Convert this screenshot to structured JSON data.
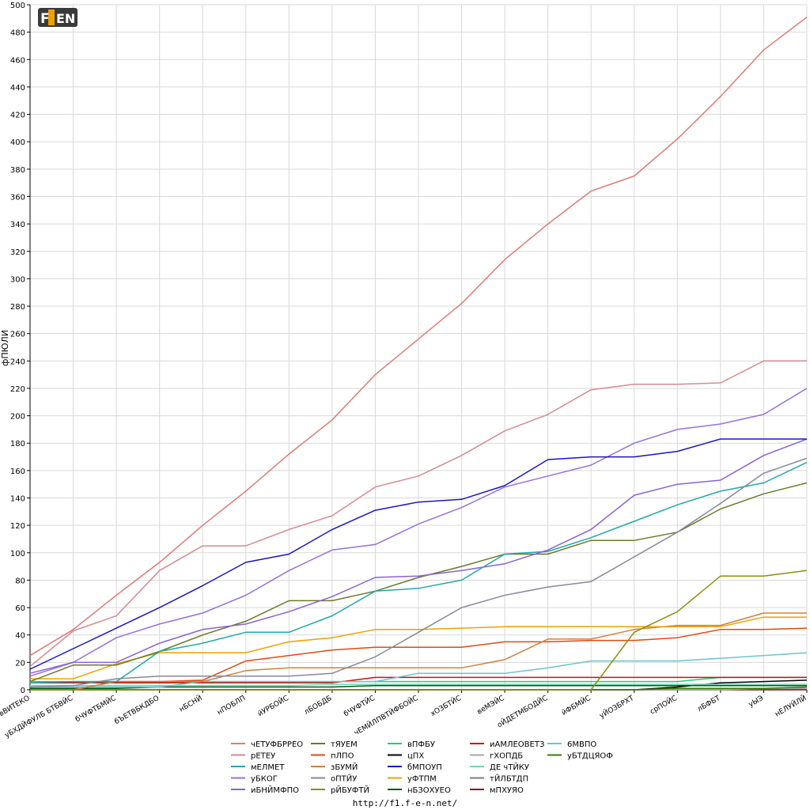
{
  "footer_url": "http://f1.f-e-n.net/",
  "logo_text": "F1EN",
  "chart_data": {
    "type": "line",
    "title": "",
    "xlabel": "",
    "ylabel": "фПЮЛИ",
    "ylim": [
      0,
      500
    ],
    "yticks": [
      0,
      20,
      40,
      60,
      80,
      100,
      120,
      140,
      160,
      180,
      200,
      220,
      240,
      260,
      280,
      300,
      320,
      340,
      360,
      380,
      400,
      420,
      440,
      460,
      480,
      500
    ],
    "grid": true,
    "legend_placement": "bottom",
    "categories": [
      "вВИТЕКО",
      "уБХДЙФУЛБ БТБВЙС",
      "бЧУФТБМЙС",
      "бЪЕТВБКДБО",
      "нБСНЙ",
      "нПОБЛП",
      "йУРБОЙС",
      "лБОБДБ",
      "бЧУФТЙС",
      "чЕМЙЛПВТЙФБОЙС",
      "хОЗБТЙС",
      "веМЭЙС",
      "оЙДЕТМБОДЙС",
      "йФБМЙС",
      "уЙОЗБРХТ",
      "срПОЙС",
      "лБФБТ",
      "уЫЭ",
      "нЕЛУЙЛЙ"
    ],
    "series": [
      {
        "name": "чЕТУФБРРЕО",
        "color": "#e07a74",
        "values": [
          25,
          44,
          69,
          93,
          120,
          145,
          172,
          197,
          230,
          256,
          282,
          314,
          340,
          364,
          375,
          402,
          433,
          467,
          491
        ]
      },
      {
        "name": "рЕТЕУ",
        "color": "#d48a95",
        "values": [
          17,
          43,
          54,
          87,
          105,
          105,
          117,
          127,
          148,
          156,
          171,
          189,
          201,
          219,
          223,
          223,
          224,
          240,
          240
        ]
      },
      {
        "name": "бМПОУП",
        "color": "#1a14c8",
        "values": [
          15,
          30,
          45,
          60,
          76,
          93,
          99,
          117,
          131,
          137,
          139,
          149,
          168,
          170,
          170,
          174,
          183,
          183,
          183
        ]
      },
      {
        "name": "иБНЙМФПО",
        "color": "#8a62d4",
        "values": [
          12,
          20,
          20,
          34,
          44,
          48,
          57,
          68,
          82,
          83,
          87,
          92,
          102,
          117,
          142,
          150,
          153,
          171,
          183
        ]
      },
      {
        "name": "уБКОГ",
        "color": "#9670de",
        "values": [
          10,
          20,
          38,
          48,
          56,
          69,
          87,
          102,
          106,
          121,
          133,
          148,
          156,
          164,
          180,
          190,
          194,
          201,
          220
        ]
      },
      {
        "name": "мЕЛМЕТ",
        "color": "#22a8a8",
        "values": [
          5,
          6,
          6,
          28,
          34,
          42,
          42,
          54,
          72,
          74,
          80,
          99,
          101,
          111,
          123,
          135,
          145,
          151,
          166
        ]
      },
      {
        "name": "оПТЙУ",
        "color": "#888899",
        "values": [
          2,
          3,
          8,
          10,
          10,
          10,
          10,
          12,
          24,
          42,
          60,
          69,
          75,
          79,
          97,
          115,
          136,
          158,
          169
        ]
      },
      {
        "name": "тЯУЕМ",
        "color": "#6b7a28",
        "values": [
          6,
          18,
          18,
          28,
          40,
          50,
          65,
          65,
          72,
          82,
          90,
          99,
          99,
          109,
          109,
          115,
          132,
          143,
          151
        ]
      },
      {
        "name": "рЙБУФТЙ",
        "color": "#8e8e0a",
        "values": [
          0,
          0,
          0,
          0,
          0,
          0,
          0,
          0,
          0,
          0,
          0,
          0,
          0,
          0,
          42,
          57,
          83,
          83,
          87
        ]
      },
      {
        "name": "уФТПМ",
        "color": "#f0a000",
        "values": [
          8,
          8,
          19,
          27,
          27,
          27,
          35,
          38,
          44,
          44,
          45,
          46,
          46,
          46,
          46,
          46,
          46,
          53,
          53
        ]
      },
      {
        "name": "зБУМЙ",
        "color": "#d08040",
        "values": [
          0,
          0,
          6,
          6,
          6,
          14,
          16,
          16,
          16,
          16,
          16,
          22,
          37,
          37,
          44,
          47,
          47,
          56,
          56
        ]
      },
      {
        "name": "пЛПО",
        "color": "#e04a10",
        "values": [
          0,
          0,
          6,
          6,
          7,
          21,
          25,
          29,
          31,
          31,
          31,
          35,
          35,
          36,
          36,
          38,
          44,
          44,
          45
        ]
      },
      {
        "name": "6МВПО",
        "color": "#6cc4d0",
        "values": [
          2,
          2,
          2,
          2,
          6,
          6,
          6,
          6,
          6,
          12,
          12,
          12,
          16,
          21,
          21,
          21,
          23,
          25,
          27
        ]
      },
      {
        "name": "иАМЛЕОВЕТЗ",
        "color": "#d01010",
        "values": [
          5,
          5,
          5,
          5,
          5,
          5,
          5,
          5,
          9,
          9,
          9,
          9,
          9,
          9,
          9,
          9,
          9,
          9,
          9
        ]
      },
      {
        "name": "вПФБУ",
        "color": "#20d070",
        "values": [
          6,
          6,
          6,
          6,
          6,
          6,
          6,
          6,
          6,
          6,
          6,
          6,
          6,
          6,
          6,
          6,
          9,
          9,
          9
        ]
      },
      {
        "name": "ДЕ чТЙКУ",
        "color": "#70d8b0",
        "values": [
          3,
          3,
          3,
          3,
          3,
          3,
          3,
          4,
          4,
          4,
          4,
          4,
          4,
          4,
          4,
          4,
          4,
          4,
          4
        ]
      },
      {
        "name": "нБЗОХУЕО",
        "color": "#005a10",
        "values": [
          1,
          1,
          1,
          2,
          2,
          2,
          2,
          2,
          3,
          3,
          3,
          3,
          3,
          3,
          3,
          3,
          3,
          3,
          3
        ]
      },
      {
        "name": "уБТДЦЯОФ",
        "color": "#3a7a0a",
        "values": [
          0,
          0,
          0,
          0,
          0,
          0,
          0,
          0,
          0,
          0,
          0,
          0,
          0,
          0,
          0,
          1,
          1,
          1,
          2
        ]
      },
      {
        "name": "гХОПДБ",
        "color": "#a8a8a8",
        "values": [
          0,
          0,
          0,
          0,
          0,
          0,
          0,
          0,
          0,
          0,
          0,
          0,
          0,
          0,
          0,
          0,
          0,
          1,
          1
        ]
      },
      {
        "name": "цПХ",
        "color": "#000000",
        "values": [
          0,
          0,
          0,
          0,
          0,
          0,
          0,
          0,
          0,
          0,
          0,
          0,
          0,
          0,
          0,
          2,
          5,
          6,
          7
        ]
      },
      {
        "name": "мПХУЯО",
        "color": "#8a1818",
        "values": [
          0,
          0,
          0,
          0,
          0,
          0,
          0,
          0,
          0,
          0,
          0,
          0,
          0,
          0,
          0,
          0,
          0,
          0,
          0
        ]
      },
      {
        "name": "тЙЛБТДП",
        "color": "#7a7a7a",
        "values": [
          0,
          0,
          0,
          0,
          0,
          0,
          0,
          0,
          0,
          0,
          0,
          0,
          0,
          0,
          0,
          0,
          0,
          0,
          0
        ]
      }
    ],
    "legend_order": [
      "чЕТУФБРРЕО",
      "рЕТЕУ",
      "мЕЛМЕТ",
      "уБКОГ",
      "иБНЙМФПО",
      "тЯУЕМ",
      "пЛПО",
      "зБУМЙ",
      "оПТЙУ",
      "рЙБУФТЙ",
      "вПФБУ",
      "цПХ",
      "бМПОУП",
      "уФТПМ",
      "нБЗОХУЕО",
      "иАМЛЕОВЕТЗ",
      "гХОПДБ",
      "ДЕ чТЙКУ",
      "тЙЛБТДП",
      "мПХУЯО",
      "6МВПО",
      "уБТДЦЯОФ"
    ]
  }
}
